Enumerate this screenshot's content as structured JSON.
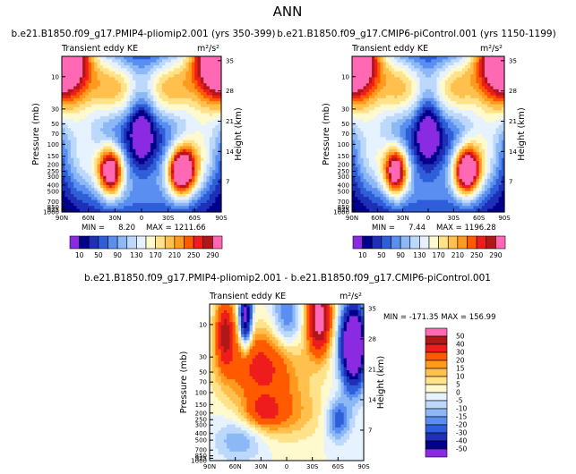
{
  "page_title": "ANN",
  "chart_data": [
    {
      "type": "heatmap",
      "id": "top_left",
      "title": "b.e21.B1850.f09_g17.PMIP4-pliomip2.001 (yrs 350-399)",
      "subtitle_left": "Transient eddy KE",
      "subtitle_right": "m²/s²",
      "xlabel": "",
      "ylabel": "Pressure (mb)",
      "ylabel_right": "Height (km)",
      "x_ticks": [
        "90N",
        "60N",
        "30N",
        "0",
        "30S",
        "60S",
        "90S"
      ],
      "x_range": [
        90,
        -90
      ],
      "y_ticks": [
        "10",
        "30",
        "50",
        "70",
        "100",
        "150",
        "200",
        "250",
        "300",
        "400",
        "500",
        "700",
        "850",
        "925",
        "1000"
      ],
      "y_range_mb": [
        1000,
        5
      ],
      "right_ticks": [
        "7",
        "14",
        "21",
        "28",
        "35"
      ],
      "min_label": "MIN =",
      "min_value": "8.20",
      "max_label": "MAX = 1211.66",
      "levels": [
        10,
        30,
        50,
        70,
        90,
        110,
        130,
        150,
        170,
        190,
        210,
        230,
        250,
        270,
        290
      ],
      "colorbar_labels": [
        "10",
        "50",
        "90",
        "130",
        "170",
        "210",
        "250",
        "290"
      ],
      "colors": [
        "#8a2be2",
        "#00008b",
        "#1e2fb8",
        "#2e5fd8",
        "#5a8ef0",
        "#8cb8f5",
        "#bcd8fa",
        "#e6f2ff",
        "#fffacd",
        "#ffe28a",
        "#ffc04d",
        "#ff9a1f",
        "#ff5a00",
        "#ee1c1c",
        "#b01818",
        "#ff69b4"
      ],
      "features": [
        {
          "lat": 90,
          "p": 5,
          "amp": 420,
          "wlat": 25,
          "wz": 4
        },
        {
          "lat": -90,
          "p": 5,
          "amp": 420,
          "wlat": 25,
          "wz": 4
        },
        {
          "lat": 35,
          "p": 250,
          "amp": 270,
          "wlat": 10,
          "wz": 1.8
        },
        {
          "lat": -45,
          "p": 250,
          "amp": 290,
          "wlat": 11,
          "wz": 1.8
        },
        {
          "lat": 30,
          "p": 15,
          "amp": 180,
          "wlat": 22,
          "wz": 2.5
        },
        {
          "lat": -30,
          "p": 15,
          "amp": 180,
          "wlat": 22,
          "wz": 2.5
        },
        {
          "lat": 65,
          "p": 150,
          "amp": 120,
          "wlat": 18,
          "wz": 3
        },
        {
          "lat": -65,
          "p": 150,
          "amp": 130,
          "wlat": 18,
          "wz": 3
        },
        {
          "lat": 0,
          "p": 400,
          "amp": 90,
          "wlat": 35,
          "wz": 3
        },
        {
          "lat": 0,
          "p": 60,
          "amp": -80,
          "wlat": 10,
          "wz": 3
        }
      ]
    },
    {
      "type": "heatmap",
      "id": "top_right",
      "title": "b.e21.B1850.f09_g17.CMIP6-piControl.001 (yrs 1150-1199)",
      "subtitle_left": "Transient eddy KE",
      "subtitle_right": "m²/s²",
      "xlabel": "",
      "ylabel": "Pressure (mb)",
      "ylabel_right": "Height (km)",
      "x_ticks": [
        "90N",
        "60N",
        "30N",
        "0",
        "30S",
        "60S",
        "90S"
      ],
      "x_range": [
        90,
        -90
      ],
      "y_ticks": [
        "10",
        "30",
        "50",
        "70",
        "100",
        "150",
        "200",
        "250",
        "300",
        "400",
        "500",
        "700",
        "850",
        "925",
        "1000"
      ],
      "y_range_mb": [
        1000,
        5
      ],
      "right_ticks": [
        "7",
        "14",
        "21",
        "28",
        "35"
      ],
      "min_label": "MIN =",
      "min_value": "7.44",
      "max_label": "MAX = 1196.28",
      "levels": [
        10,
        30,
        50,
        70,
        90,
        110,
        130,
        150,
        170,
        190,
        210,
        230,
        250,
        270,
        290
      ],
      "colorbar_labels": [
        "10",
        "50",
        "90",
        "130",
        "170",
        "210",
        "250",
        "290"
      ],
      "colors": [
        "#8a2be2",
        "#00008b",
        "#1e2fb8",
        "#2e5fd8",
        "#5a8ef0",
        "#8cb8f5",
        "#bcd8fa",
        "#e6f2ff",
        "#fffacd",
        "#ffe28a",
        "#ffc04d",
        "#ff9a1f",
        "#ff5a00",
        "#ee1c1c",
        "#b01818",
        "#ff69b4"
      ],
      "features": [
        {
          "lat": 90,
          "p": 5,
          "amp": 420,
          "wlat": 25,
          "wz": 4
        },
        {
          "lat": -90,
          "p": 5,
          "amp": 420,
          "wlat": 25,
          "wz": 4
        },
        {
          "lat": 38,
          "p": 250,
          "amp": 260,
          "wlat": 10,
          "wz": 1.8
        },
        {
          "lat": -45,
          "p": 250,
          "amp": 280,
          "wlat": 11,
          "wz": 1.8
        },
        {
          "lat": 30,
          "p": 15,
          "amp": 175,
          "wlat": 22,
          "wz": 2.5
        },
        {
          "lat": -30,
          "p": 15,
          "amp": 175,
          "wlat": 22,
          "wz": 2.5
        },
        {
          "lat": 65,
          "p": 150,
          "amp": 120,
          "wlat": 18,
          "wz": 3
        },
        {
          "lat": -65,
          "p": 150,
          "amp": 125,
          "wlat": 18,
          "wz": 3
        },
        {
          "lat": 0,
          "p": 400,
          "amp": 85,
          "wlat": 35,
          "wz": 3
        },
        {
          "lat": 0,
          "p": 60,
          "amp": -80,
          "wlat": 10,
          "wz": 3
        }
      ]
    },
    {
      "type": "heatmap",
      "id": "bottom_diff",
      "title": "b.e21.B1850.f09_g17.PMIP4-pliomip2.001 - b.e21.B1850.f09_g17.CMIP6-piControl.001",
      "subtitle_left": "Transient eddy KE",
      "subtitle_right": "m²/s²",
      "xlabel": "",
      "ylabel": "Pressure (mb)",
      "ylabel_right": "Height (km)",
      "x_ticks": [
        "90N",
        "60N",
        "30N",
        "0",
        "30S",
        "60S",
        "90S"
      ],
      "x_range": [
        90,
        -90
      ],
      "y_ticks": [
        "10",
        "30",
        "50",
        "70",
        "100",
        "150",
        "200",
        "250",
        "300",
        "400",
        "500",
        "700",
        "850",
        "925",
        "1000"
      ],
      "y_range_mb": [
        1000,
        5
      ],
      "right_ticks": [
        "7",
        "14",
        "21",
        "28",
        "35"
      ],
      "min_max_label": "MIN = -171.35   MAX = 156.99",
      "levels": [
        -50,
        -40,
        -30,
        -20,
        -15,
        -10,
        -5,
        0,
        5,
        10,
        15,
        20,
        30,
        40,
        50
      ],
      "colorbar_labels": [
        "50",
        "40",
        "30",
        "20",
        "15",
        "10",
        "5",
        "0",
        "-5",
        "-10",
        "-15",
        "-20",
        "-30",
        "-40",
        "-50"
      ],
      "colors": [
        "#8a2be2",
        "#00008b",
        "#1e2fb8",
        "#2e5fd8",
        "#5a8ef0",
        "#8cb8f5",
        "#bcd8fa",
        "#e6f2ff",
        "#fffacd",
        "#ffe28a",
        "#ffc04d",
        "#ff9a1f",
        "#ff5a00",
        "#ee1c1c",
        "#b01818",
        "#ff69b4"
      ],
      "features": [
        {
          "lat": 30,
          "p": 40,
          "amp": 34,
          "wlat": 32,
          "wz": 2.6
        },
        {
          "lat": 72,
          "p": 12,
          "amp": 40,
          "wlat": 8,
          "wz": 2.5
        },
        {
          "lat": 48,
          "p": 8,
          "amp": -60,
          "wlat": 5,
          "wz": 2
        },
        {
          "lat": 0,
          "p": 8,
          "amp": -22,
          "wlat": 12,
          "wz": 2.5
        },
        {
          "lat": -38,
          "p": 8,
          "amp": 60,
          "wlat": 10,
          "wz": 2.5
        },
        {
          "lat": -78,
          "p": 20,
          "amp": -90,
          "wlat": 10,
          "wz": 2.8
        },
        {
          "lat": 28,
          "p": 200,
          "amp": 20,
          "wlat": 16,
          "wz": 1.2
        },
        {
          "lat": -60,
          "p": 250,
          "amp": -25,
          "wlat": 10,
          "wz": 1.5
        },
        {
          "lat": 55,
          "p": 500,
          "amp": -15,
          "wlat": 20,
          "wz": 1.5
        },
        {
          "lat": 0,
          "p": 200,
          "amp": 15,
          "wlat": 30,
          "wz": 2
        }
      ]
    }
  ]
}
